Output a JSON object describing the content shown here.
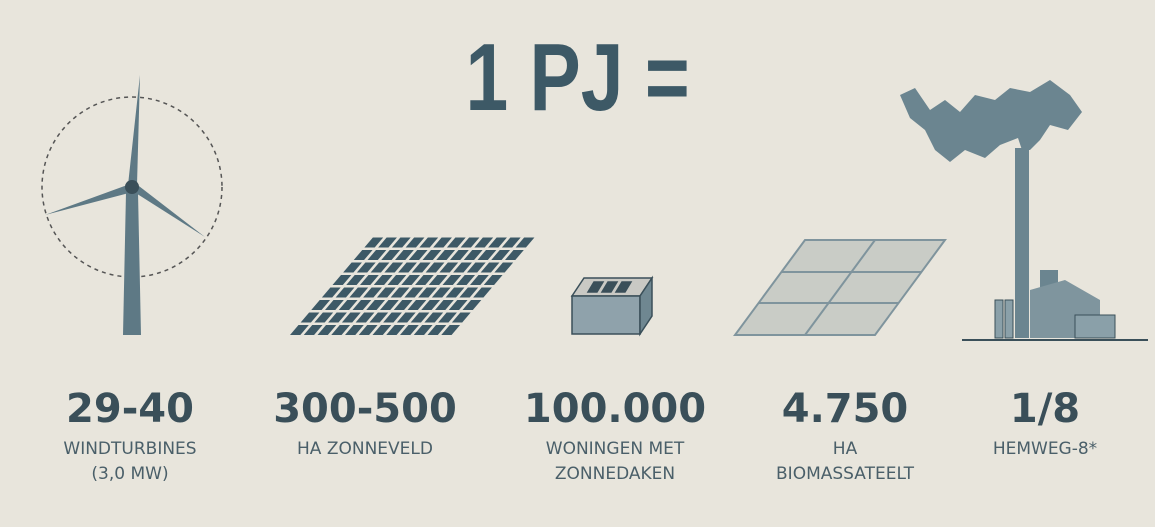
{
  "title": "1 PJ =",
  "items": [
    {
      "value": "29-40",
      "lines": [
        "WINDTURBINES",
        "(3,0 MW)"
      ]
    },
    {
      "value": "300-500",
      "lines": [
        "HA ZONNEVELD"
      ]
    },
    {
      "value": "100.000",
      "lines": [
        "WONINGEN MET",
        "ZONNEDAKEN"
      ]
    },
    {
      "value": "4.750",
      "lines": [
        "HA",
        "BIOMASSATEELT"
      ]
    },
    {
      "value": "1/8",
      "lines": [
        "HEMWEG-8*"
      ]
    }
  ]
}
